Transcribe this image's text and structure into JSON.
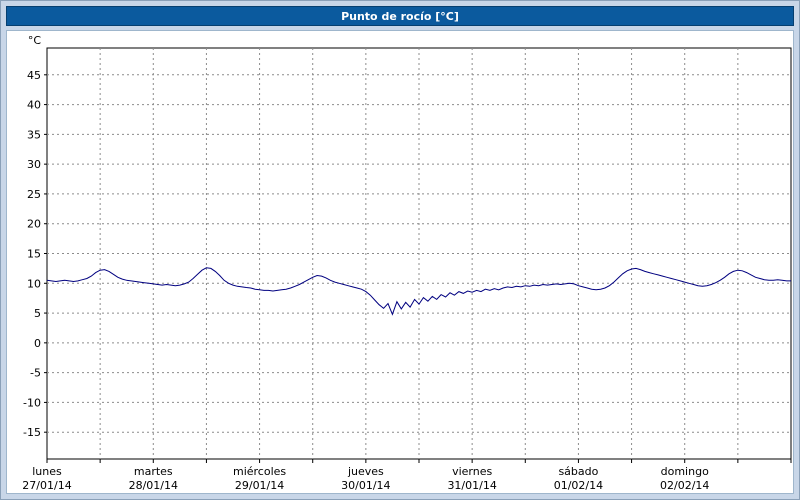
{
  "header": {
    "title": "Punto de rocío [°C]"
  },
  "colors": {
    "header_bg": "#0b5a9e",
    "header_text": "#ffffff",
    "frame_bg": "#c8d6e8",
    "plot_bg": "#ffffff",
    "grid": "#8c8c8c",
    "axis": "#000000",
    "line": "#000080"
  },
  "chart_data": {
    "type": "line",
    "title": "Punto de rocío [°C]",
    "xlabel": "",
    "ylabel": "°C",
    "ylim": [
      -19.5,
      49.5
    ],
    "y_ticks": [
      45,
      40,
      35,
      30,
      25,
      20,
      15,
      10,
      5,
      0,
      -5,
      -10,
      -15
    ],
    "grid": true,
    "legend": "none",
    "x_unit": "hours",
    "x_step_hours": 1,
    "x_span_days": 7,
    "days": [
      {
        "name": "lunes",
        "date": "27/01/14"
      },
      {
        "name": "martes",
        "date": "28/01/14"
      },
      {
        "name": "miércoles",
        "date": "29/01/14"
      },
      {
        "name": "jueves",
        "date": "30/01/14"
      },
      {
        "name": "viernes",
        "date": "31/01/14"
      },
      {
        "name": "sábado",
        "date": "01/02/14"
      },
      {
        "name": "domingo",
        "date": "02/02/14"
      }
    ],
    "series": [
      {
        "name": "Punto de rocío",
        "color": "#000080",
        "values": [
          10.5,
          10.4,
          10.3,
          10.4,
          10.5,
          10.4,
          10.3,
          10.4,
          10.6,
          10.8,
          11.2,
          11.8,
          12.2,
          12.3,
          12.0,
          11.5,
          11.0,
          10.7,
          10.5,
          10.4,
          10.3,
          10.2,
          10.1,
          10.0,
          9.9,
          9.8,
          9.7,
          9.8,
          9.7,
          9.6,
          9.7,
          9.9,
          10.2,
          10.8,
          11.5,
          12.2,
          12.6,
          12.5,
          12.0,
          11.3,
          10.5,
          10.0,
          9.7,
          9.5,
          9.4,
          9.3,
          9.2,
          9.0,
          8.9,
          8.8,
          8.8,
          8.7,
          8.8,
          8.9,
          9.0,
          9.2,
          9.5,
          9.8,
          10.2,
          10.6,
          11.0,
          11.3,
          11.2,
          10.9,
          10.5,
          10.2,
          10.0,
          9.8,
          9.6,
          9.4,
          9.2,
          9.0,
          8.6,
          8.0,
          7.2,
          6.4,
          5.8,
          6.6,
          4.8,
          6.9,
          5.7,
          6.8,
          6.0,
          7.3,
          6.5,
          7.6,
          7.0,
          7.8,
          7.3,
          8.1,
          7.7,
          8.4,
          8.0,
          8.6,
          8.3,
          8.7,
          8.5,
          8.8,
          8.6,
          9.0,
          8.8,
          9.1,
          8.9,
          9.2,
          9.4,
          9.3,
          9.5,
          9.4,
          9.6,
          9.5,
          9.7,
          9.6,
          9.8,
          9.7,
          9.8,
          9.9,
          9.8,
          9.9,
          10.0,
          9.9,
          9.6,
          9.4,
          9.2,
          9.0,
          8.9,
          9.0,
          9.2,
          9.6,
          10.2,
          10.9,
          11.6,
          12.1,
          12.4,
          12.5,
          12.3,
          12.0,
          11.8,
          11.6,
          11.4,
          11.2,
          11.0,
          10.8,
          10.6,
          10.4,
          10.2,
          10.0,
          9.8,
          9.6,
          9.5,
          9.6,
          9.8,
          10.1,
          10.5,
          11.0,
          11.6,
          12.0,
          12.2,
          12.1,
          11.8,
          11.4,
          11.0,
          10.8,
          10.6,
          10.5,
          10.5,
          10.6,
          10.5,
          10.4,
          10.4
        ]
      }
    ]
  }
}
